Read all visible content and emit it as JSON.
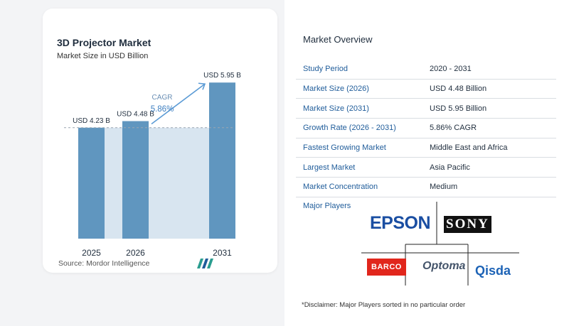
{
  "chart_data": {
    "type": "bar",
    "title": "3D Projector Market",
    "subtitle": "Market Size in USD Billion",
    "categories": [
      "2025",
      "2026",
      "2031"
    ],
    "values": [
      4.23,
      4.48,
      5.95
    ],
    "value_labels": [
      "USD 4.23 B",
      "USD 4.48 B",
      "USD 5.95 B"
    ],
    "ylim": [
      0,
      6.2
    ],
    "annotation": {
      "label": "CAGR",
      "value": "5.86%"
    },
    "reference_line_value": 4.23,
    "bar_color": "#6096bf",
    "area_color": "#d8e5f0",
    "annotation_color": "#5b9bd5"
  },
  "source": "Source:  Mordor Intelligence",
  "overview": {
    "title": "Market Overview",
    "rows": [
      {
        "key": "Study Period",
        "value": "2020 - 2031"
      },
      {
        "key": "Market Size (2026)",
        "value": "USD 4.48 Billion"
      },
      {
        "key": "Market Size (2031)",
        "value": "USD 5.95 Billion"
      },
      {
        "key": "Growth Rate (2026 - 2031)",
        "value": "5.86% CAGR"
      },
      {
        "key": "Fastest Growing Market",
        "value": "Middle East and Africa"
      },
      {
        "key": "Largest Market",
        "value": "Asia Pacific"
      },
      {
        "key": "Market Concentration",
        "value": "Medium"
      }
    ]
  },
  "players": {
    "title": "Major Players",
    "logos": [
      "EPSON",
      "SONY",
      "BARCO",
      "Optoma",
      "Qisda"
    ]
  },
  "disclaimer": "*Disclaimer: Major Players sorted in no particular order"
}
